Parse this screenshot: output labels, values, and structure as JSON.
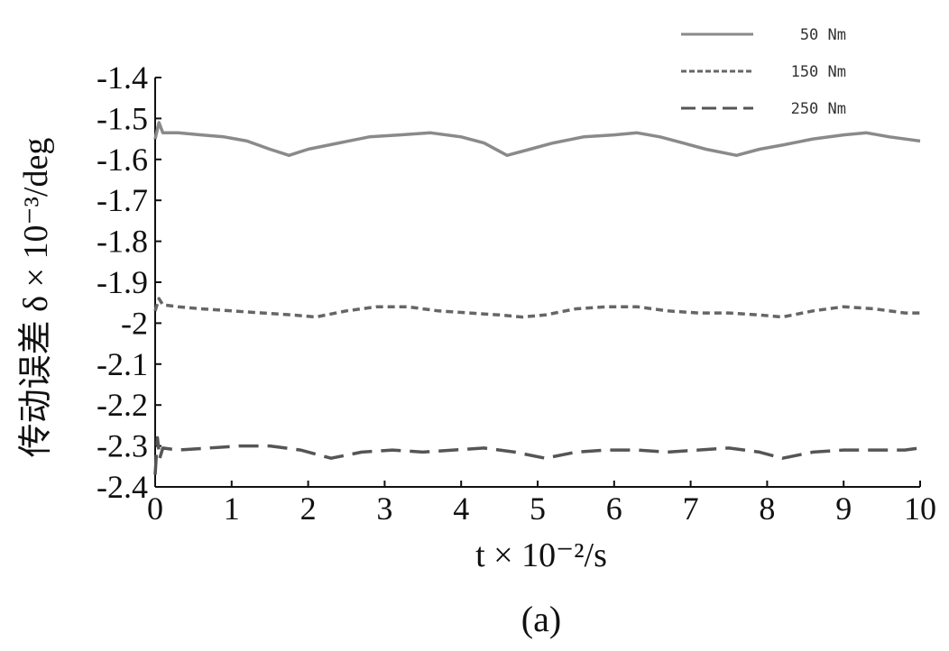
{
  "chart_data": {
    "type": "line",
    "xlabel": "t × 10⁻²/s",
    "ylabel": "传动误差 δ × 10⁻³/deg",
    "panel_label": "(a)",
    "xlim": [
      0,
      10
    ],
    "ylim": [
      -2.4,
      -1.4
    ],
    "x_ticks": [
      0,
      1,
      2,
      3,
      4,
      5,
      6,
      7,
      8,
      9,
      10
    ],
    "y_ticks": [
      -1.4,
      -1.5,
      -1.6,
      -1.7,
      -1.8,
      -1.9,
      -2.0,
      -2.1,
      -2.2,
      -2.3,
      -2.4
    ],
    "x_tick_labels": [
      "0",
      "1",
      "2",
      "3",
      "4",
      "5",
      "6",
      "7",
      "8",
      "9",
      "10"
    ],
    "y_tick_labels": [
      "-1.4",
      "-1.5",
      "-1.6",
      "-1.7",
      "-1.8",
      "-1.9",
      "-2",
      "-2.1",
      "-2.2",
      "-2.3",
      "-2.4"
    ],
    "grid": false,
    "legend_position": "top-right",
    "series": [
      {
        "name": "50 Nm",
        "line_style": "solid",
        "color": "#8a8a8a",
        "x": [
          0,
          0.05,
          0.1,
          0.3,
          0.6,
          0.9,
          1.2,
          1.5,
          1.75,
          2.0,
          2.4,
          2.8,
          3.2,
          3.6,
          4.0,
          4.3,
          4.6,
          4.9,
          5.2,
          5.6,
          6.0,
          6.3,
          6.6,
          6.9,
          7.2,
          7.6,
          7.9,
          8.2,
          8.6,
          9.0,
          9.3,
          9.6,
          10.0
        ],
        "y": [
          -1.55,
          -1.51,
          -1.535,
          -1.535,
          -1.54,
          -1.545,
          -1.555,
          -1.575,
          -1.59,
          -1.575,
          -1.56,
          -1.545,
          -1.54,
          -1.535,
          -1.545,
          -1.56,
          -1.59,
          -1.575,
          -1.56,
          -1.545,
          -1.54,
          -1.535,
          -1.545,
          -1.56,
          -1.575,
          -1.59,
          -1.575,
          -1.565,
          -1.55,
          -1.54,
          -1.535,
          -1.545,
          -1.555
        ]
      },
      {
        "name": "150 Nm",
        "line_style": "dashed",
        "color": "#666666",
        "x": [
          0,
          0.05,
          0.1,
          0.3,
          0.6,
          1.0,
          1.4,
          1.8,
          2.1,
          2.5,
          2.9,
          3.3,
          3.7,
          4.1,
          4.5,
          4.8,
          5.1,
          5.5,
          5.9,
          6.3,
          6.7,
          7.1,
          7.5,
          7.9,
          8.2,
          8.6,
          9.0,
          9.4,
          9.8,
          10.0
        ],
        "y": [
          -1.97,
          -1.94,
          -1.955,
          -1.96,
          -1.965,
          -1.97,
          -1.975,
          -1.98,
          -1.985,
          -1.97,
          -1.96,
          -1.96,
          -1.97,
          -1.975,
          -1.98,
          -1.985,
          -1.98,
          -1.965,
          -1.96,
          -1.96,
          -1.97,
          -1.975,
          -1.975,
          -1.98,
          -1.985,
          -1.97,
          -1.96,
          -1.965,
          -1.975,
          -1.975
        ]
      },
      {
        "name": "250 Nm",
        "line_style": "long-dash",
        "color": "#555555",
        "x": [
          0,
          0.03,
          0.06,
          0.1,
          0.3,
          0.7,
          1.1,
          1.5,
          1.9,
          2.3,
          2.7,
          3.1,
          3.5,
          3.9,
          4.3,
          4.7,
          5.1,
          5.5,
          5.9,
          6.3,
          6.7,
          7.1,
          7.5,
          7.9,
          8.2,
          8.6,
          9.0,
          9.4,
          9.8,
          10.0
        ],
        "y": [
          -2.37,
          -2.28,
          -2.33,
          -2.305,
          -2.31,
          -2.305,
          -2.3,
          -2.3,
          -2.31,
          -2.33,
          -2.315,
          -2.31,
          -2.315,
          -2.31,
          -2.305,
          -2.315,
          -2.33,
          -2.315,
          -2.31,
          -2.31,
          -2.315,
          -2.31,
          -2.305,
          -2.315,
          -2.33,
          -2.315,
          -2.31,
          -2.31,
          -2.31,
          -2.305
        ]
      }
    ]
  }
}
